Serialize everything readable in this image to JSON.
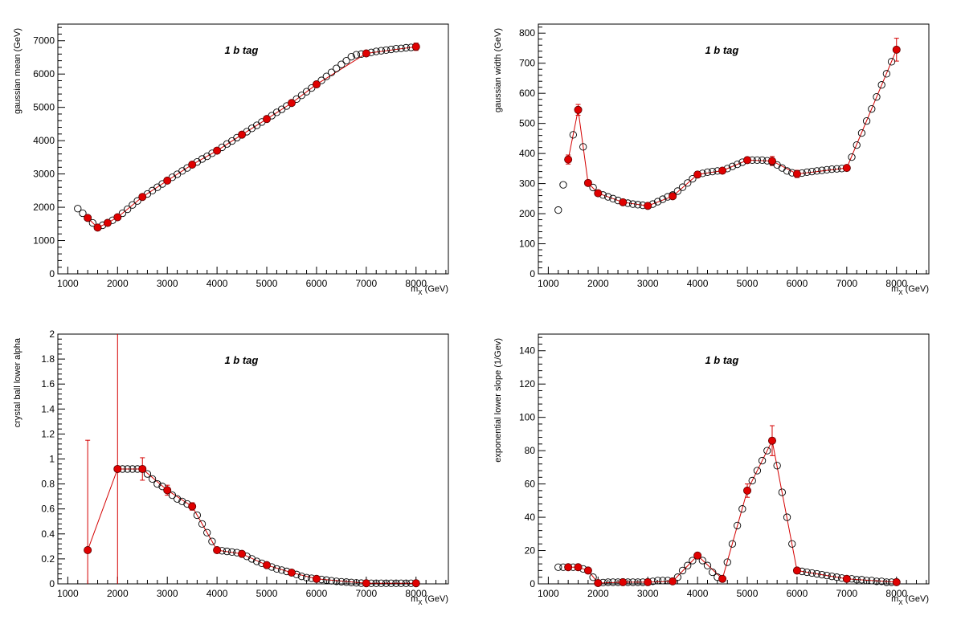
{
  "annotation": "1 b tag",
  "colors": {
    "highlight": "#e00000",
    "line": "#d40000",
    "open_marker": "#000000",
    "axis": "#000000"
  },
  "chart_data": [
    {
      "type": "scatter",
      "ylabel": "gaussian mean (GeV)",
      "xlabel": "m_X (GeV)",
      "xlabel_main": "m",
      "xlabel_sub": "X",
      "xlabel_unit": "(GeV)",
      "annotation": "1 b tag",
      "xlim": [
        800,
        8650
      ],
      "ylim": [
        0,
        7500
      ],
      "xticks": [
        1000,
        2000,
        3000,
        4000,
        5000,
        6000,
        7000,
        8000
      ],
      "yticks": [
        0,
        1000,
        2000,
        3000,
        4000,
        5000,
        6000,
        7000
      ],
      "ytick_labels": [
        "0",
        "1000",
        "2000",
        "3000",
        "4000",
        "5000",
        "6000",
        "7000"
      ],
      "grid": false,
      "series": [
        {
          "role": "interpolated",
          "style": "open-circle",
          "x": [
            1200,
            1300,
            1400,
            1500,
            1600,
            1700,
            1800,
            1900,
            2000,
            2100,
            2200,
            2300,
            2400,
            2500,
            2600,
            2700,
            2800,
            2900,
            3000,
            3100,
            3200,
            3300,
            3400,
            3500,
            3600,
            3700,
            3800,
            3900,
            4000,
            4100,
            4200,
            4300,
            4400,
            4500,
            4600,
            4700,
            4800,
            4900,
            5000,
            5100,
            5200,
            5300,
            5400,
            5500,
            5600,
            5700,
            5800,
            5900,
            6000,
            6100,
            6200,
            6300,
            6400,
            6500,
            6600,
            6700,
            6800,
            6900,
            7000,
            7100,
            7200,
            7300,
            7400,
            7500,
            7600,
            7700,
            7800,
            7900,
            8000
          ],
          "y": [
            1960,
            1820,
            1680,
            1530,
            1390,
            1460,
            1530,
            1610,
            1700,
            1820,
            1940,
            2070,
            2190,
            2310,
            2400,
            2500,
            2600,
            2700,
            2800,
            2900,
            2990,
            3090,
            3180,
            3280,
            3360,
            3450,
            3530,
            3620,
            3700,
            3800,
            3900,
            3990,
            4090,
            4180,
            4270,
            4370,
            4460,
            4560,
            4650,
            4750,
            4850,
            4940,
            5040,
            5130,
            5250,
            5360,
            5470,
            5580,
            5690,
            5810,
            5930,
            6050,
            6170,
            6290,
            6400,
            6520,
            6580,
            6600,
            6620,
            6650,
            6680,
            6700,
            6720,
            6740,
            6760,
            6770,
            6790,
            6800,
            6820
          ]
        },
        {
          "role": "fitted",
          "style": "filled-circle",
          "x": [
            1400,
            1600,
            1800,
            2000,
            2500,
            3000,
            3500,
            4000,
            4500,
            5000,
            5500,
            6000,
            7000,
            8000
          ],
          "y": [
            1680,
            1390,
            1530,
            1700,
            2310,
            2800,
            3280,
            3700,
            4180,
            4650,
            5130,
            5690,
            6620,
            6820
          ],
          "err": [
            0,
            0,
            0,
            0,
            0,
            0,
            0,
            0,
            0,
            0,
            0,
            0,
            60,
            110
          ]
        }
      ]
    },
    {
      "type": "scatter",
      "ylabel": "gaussian width (GeV)",
      "xlabel": "m_X (GeV)",
      "xlabel_main": "m",
      "xlabel_sub": "X",
      "xlabel_unit": "(GeV)",
      "annotation": "1 b tag",
      "xlim": [
        800,
        8650
      ],
      "ylim": [
        0,
        830
      ],
      "xticks": [
        1000,
        2000,
        3000,
        4000,
        5000,
        6000,
        7000,
        8000
      ],
      "yticks": [
        0,
        100,
        200,
        300,
        400,
        500,
        600,
        700,
        800
      ],
      "ytick_labels": [
        "0",
        "100",
        "200",
        "300",
        "400",
        "500",
        "600",
        "700",
        "800"
      ],
      "grid": false,
      "series": [
        {
          "role": "interpolated",
          "style": "open-circle",
          "x": [
            1200,
            1300,
            1400,
            1500,
            1600,
            1700,
            1800,
            1900,
            2000,
            2100,
            2200,
            2300,
            2400,
            2500,
            2600,
            2700,
            2800,
            2900,
            3000,
            3100,
            3200,
            3300,
            3400,
            3500,
            3600,
            3700,
            3800,
            3900,
            4000,
            4100,
            4200,
            4300,
            4400,
            4500,
            4600,
            4700,
            4800,
            4900,
            5000,
            5100,
            5200,
            5300,
            5400,
            5500,
            5600,
            5700,
            5800,
            5900,
            6000,
            6100,
            6200,
            6300,
            6400,
            6500,
            6600,
            6700,
            6800,
            6900,
            7000,
            7100,
            7200,
            7300,
            7400,
            7500,
            7600,
            7700,
            7800,
            7900,
            8000
          ],
          "y": [
            212,
            296,
            380,
            462,
            545,
            422,
            302,
            287,
            268,
            262,
            256,
            250,
            244,
            238,
            235,
            232,
            230,
            228,
            226,
            232,
            240,
            248,
            256,
            262,
            275,
            288,
            302,
            316,
            330,
            334,
            338,
            340,
            342,
            343,
            350,
            357,
            364,
            371,
            378,
            378,
            378,
            378,
            376,
            372,
            362,
            352,
            342,
            336,
            332,
            335,
            338,
            340,
            342,
            344,
            346,
            348,
            349,
            350,
            352,
            388,
            428,
            468,
            508,
            548,
            588,
            628,
            665,
            705,
            745
          ]
        },
        {
          "role": "fitted",
          "style": "filled-circle",
          "x": [
            1400,
            1600,
            1800,
            2000,
            2500,
            3000,
            3500,
            4000,
            4500,
            5000,
            5500,
            6000,
            7000,
            8000
          ],
          "y": [
            380,
            545,
            302,
            268,
            238,
            226,
            258,
            330,
            343,
            378,
            375,
            332,
            352,
            745
          ],
          "err": [
            15,
            18,
            8,
            5,
            5,
            5,
            8,
            10,
            8,
            10,
            15,
            12,
            8,
            38
          ]
        }
      ]
    },
    {
      "type": "scatter",
      "ylabel": "crystal ball lower alpha",
      "xlabel": "m_X (GeV)",
      "xlabel_main": "m",
      "xlabel_sub": "X",
      "xlabel_unit": "(GeV)",
      "annotation": "1 b tag",
      "xlim": [
        800,
        8650
      ],
      "ylim": [
        0,
        2
      ],
      "xticks": [
        1000,
        2000,
        3000,
        4000,
        5000,
        6000,
        7000,
        8000
      ],
      "yticks": [
        0,
        0.2,
        0.4,
        0.6,
        0.8,
        1,
        1.2,
        1.4,
        1.6,
        1.8,
        2
      ],
      "ytick_labels": [
        "0",
        "0.2",
        "0.4",
        "0.6",
        "0.8",
        "1",
        "1.2",
        "1.4",
        "1.6",
        "1.8",
        "2"
      ],
      "grid": false,
      "series": [
        {
          "role": "interpolated",
          "style": "open-circle",
          "x": [
            2000,
            2100,
            2200,
            2300,
            2400,
            2500,
            2600,
            2700,
            2800,
            2900,
            3000,
            3100,
            3200,
            3300,
            3400,
            3500,
            3600,
            3700,
            3800,
            3900,
            4000,
            4100,
            4200,
            4300,
            4400,
            4500,
            4600,
            4700,
            4800,
            4900,
            5000,
            5100,
            5200,
            5300,
            5400,
            5500,
            5600,
            5700,
            5800,
            5900,
            6000,
            6100,
            6200,
            6300,
            6400,
            6500,
            6600,
            6700,
            6800,
            6900,
            7000,
            7100,
            7200,
            7300,
            7400,
            7500,
            7600,
            7700,
            7800,
            7900,
            8000
          ],
          "y": [
            0.92,
            0.92,
            0.92,
            0.92,
            0.92,
            0.92,
            0.88,
            0.84,
            0.8,
            0.78,
            0.75,
            0.71,
            0.68,
            0.66,
            0.64,
            0.62,
            0.55,
            0.48,
            0.41,
            0.34,
            0.27,
            0.265,
            0.26,
            0.255,
            0.25,
            0.24,
            0.22,
            0.2,
            0.18,
            0.165,
            0.15,
            0.135,
            0.12,
            0.11,
            0.1,
            0.09,
            0.075,
            0.06,
            0.05,
            0.045,
            0.04,
            0.035,
            0.03,
            0.025,
            0.02,
            0.017,
            0.014,
            0.011,
            0.008,
            0.006,
            0.005,
            0.005,
            0.005,
            0.005,
            0.005,
            0.005,
            0.005,
            0.005,
            0.005,
            0.005,
            0.005
          ]
        },
        {
          "role": "fitted",
          "style": "filled-circle",
          "x": [
            1400,
            2000,
            2500,
            3000,
            3500,
            4000,
            4500,
            5000,
            5500,
            6000,
            7000,
            8000
          ],
          "y": [
            0.27,
            0.92,
            0.92,
            0.75,
            0.62,
            0.27,
            0.24,
            0.15,
            0.09,
            0.04,
            0.005,
            0.005
          ],
          "err": [
            0.88,
            1.2,
            0.09,
            0.04,
            0.03,
            0.01,
            0.01,
            0.005,
            0.005,
            0.004,
            0.003,
            0.003
          ]
        }
      ]
    },
    {
      "type": "scatter",
      "ylabel": "exponential lower slope (1/Gev)",
      "xlabel": "m_X (GeV)",
      "xlabel_main": "m",
      "xlabel_sub": "X",
      "xlabel_unit": "(GeV)",
      "annotation": "1 b tag",
      "xlim": [
        800,
        8650
      ],
      "ylim": [
        0,
        150
      ],
      "xticks": [
        1000,
        2000,
        3000,
        4000,
        5000,
        6000,
        7000,
        8000
      ],
      "yticks": [
        0,
        20,
        40,
        60,
        80,
        100,
        120,
        140
      ],
      "ytick_labels": [
        "0",
        "20",
        "40",
        "60",
        "80",
        "100",
        "120",
        "140"
      ],
      "grid": false,
      "series": [
        {
          "role": "interpolated",
          "style": "open-circle",
          "x": [
            1200,
            1300,
            1400,
            1500,
            1600,
            1700,
            1800,
            1900,
            2000,
            2100,
            2200,
            2300,
            2400,
            2500,
            2600,
            2700,
            2800,
            2900,
            3000,
            3100,
            3200,
            3300,
            3400,
            3500,
            3600,
            3700,
            3800,
            3900,
            4000,
            4100,
            4200,
            4300,
            4400,
            4500,
            4600,
            4700,
            4800,
            4900,
            5000,
            5100,
            5200,
            5300,
            5400,
            5500,
            5600,
            5700,
            5800,
            5900,
            6000,
            6100,
            6200,
            6300,
            6400,
            6500,
            6600,
            6700,
            6800,
            6900,
            7000,
            7100,
            7200,
            7300,
            7400,
            7500,
            7600,
            7700,
            7800,
            7900,
            8000
          ],
          "y": [
            10,
            10,
            10,
            10,
            10,
            9,
            8,
            4,
            0.5,
            0.8,
            1,
            1,
            1,
            1,
            1,
            1,
            1,
            1,
            1,
            1.5,
            2,
            2,
            2,
            1.5,
            4,
            8,
            11,
            14,
            17,
            14,
            11,
            7,
            4,
            3,
            13,
            24,
            35,
            45,
            56,
            62,
            68,
            74,
            80,
            86,
            71,
            55,
            40,
            24,
            8,
            7.5,
            7,
            6.5,
            6,
            5.5,
            5,
            4.5,
            4,
            3.5,
            3,
            3,
            2.5,
            2.5,
            2,
            2,
            1.5,
            1.5,
            1,
            1,
            1
          ]
        },
        {
          "role": "fitted",
          "style": "filled-circle",
          "x": [
            1400,
            1600,
            1800,
            2000,
            2500,
            3000,
            3500,
            4000,
            4500,
            5000,
            5500,
            6000,
            7000,
            8000
          ],
          "y": [
            10,
            10,
            8,
            0.5,
            1,
            1,
            1.5,
            17,
            3,
            56,
            86,
            8,
            3,
            1
          ],
          "err": [
            1,
            1,
            1,
            0.3,
            0.3,
            0.3,
            0.3,
            1.5,
            1,
            4,
            9,
            1,
            0.5,
            0.3
          ]
        }
      ]
    }
  ]
}
